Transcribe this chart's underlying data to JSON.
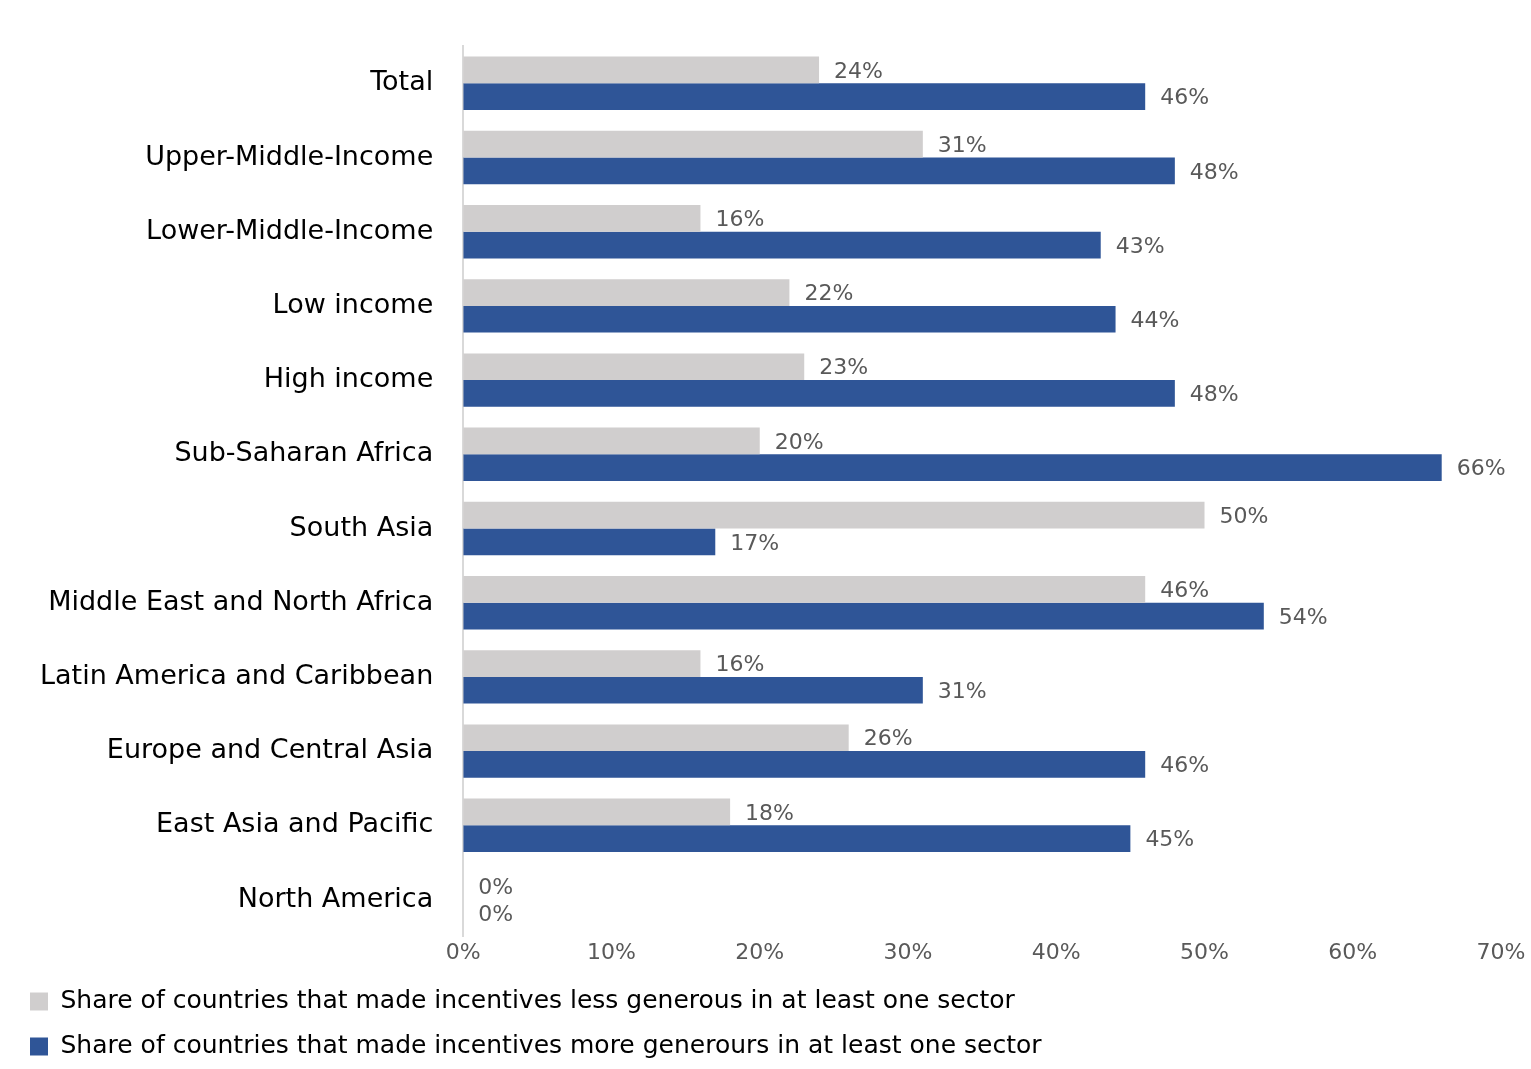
{
  "chart_data": {
    "type": "bar",
    "orientation": "horizontal",
    "categories": [
      "Total",
      "Upper-Middle-Income",
      "Lower-Middle-Income",
      "Low income",
      "High income",
      "Sub-Saharan Africa",
      "South Asia",
      "Middle East and North Africa",
      "Latin America and Caribbean",
      "Europe and Central Asia",
      "East Asia and Pacific",
      "North America"
    ],
    "series": [
      {
        "name": "Share of countries that made incentives less generous in at least one sector",
        "color": "#d0cece",
        "values": [
          24,
          31,
          16,
          22,
          23,
          20,
          50,
          46,
          16,
          26,
          18,
          0
        ],
        "value_labels": [
          "24%",
          "31%",
          "16%",
          "22%",
          "23%",
          "20%",
          "50%",
          "46%",
          "16%",
          "26%",
          "18%",
          "0%"
        ]
      },
      {
        "name": "Share of countries that made incentives more generours in at least one sector",
        "color": "#2f5597",
        "values": [
          46,
          48,
          43,
          44,
          48,
          66,
          17,
          54,
          31,
          46,
          45,
          0
        ],
        "value_labels": [
          "46%",
          "48%",
          "43%",
          "44%",
          "48%",
          "66%",
          "17%",
          "54%",
          "31%",
          "46%",
          "45%",
          "0%"
        ]
      }
    ],
    "xlim": [
      0,
      70
    ],
    "xticks": [
      {
        "value": 0,
        "label": "0%"
      },
      {
        "value": 10,
        "label": "10%"
      },
      {
        "value": 20,
        "label": "20%"
      },
      {
        "value": 30,
        "label": "30%"
      },
      {
        "value": 40,
        "label": "40%"
      },
      {
        "value": 50,
        "label": "50%"
      },
      {
        "value": 60,
        "label": "60%"
      },
      {
        "value": 70,
        "label": "70%"
      }
    ],
    "grid": false,
    "legend": "bottom"
  }
}
